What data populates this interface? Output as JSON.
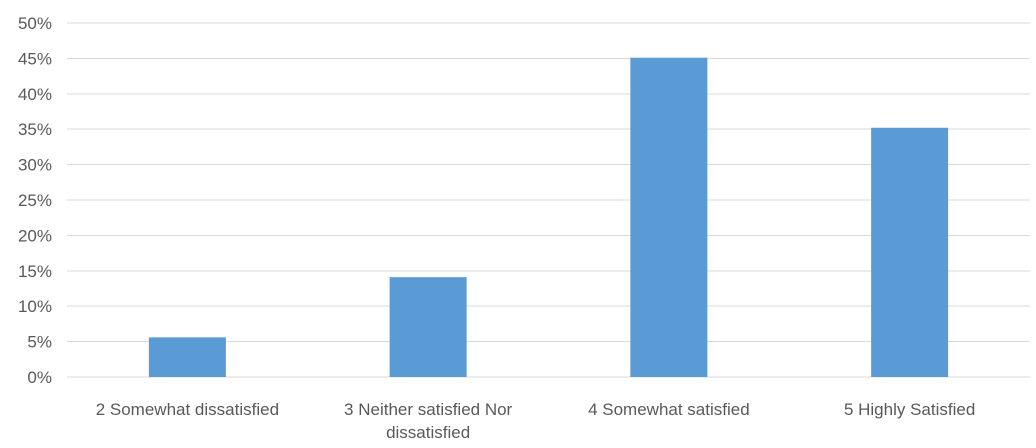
{
  "chart_data": {
    "type": "bar",
    "categories": [
      [
        "2 Somewhat dissatisfied"
      ],
      [
        "3 Neither satisfied Nor",
        "dissatisfied"
      ],
      [
        "4 Somewhat satisfied"
      ],
      [
        "5 Highly Satisfied"
      ]
    ],
    "values": [
      5.6,
      14.1,
      45.1,
      35.2
    ],
    "y_ticks": [
      "0%",
      "5%",
      "10%",
      "15%",
      "20%",
      "25%",
      "30%",
      "35%",
      "40%",
      "45%",
      "50%"
    ],
    "ylim": [
      0,
      50
    ],
    "y_step": 5,
    "grid": true,
    "legend": "none",
    "title": "",
    "xlabel": "",
    "ylabel": "",
    "colors": {
      "bar": "#5b9bd5",
      "grid": "#d9d9d9",
      "axis": "#d9d9d9",
      "text": "#595959"
    }
  }
}
